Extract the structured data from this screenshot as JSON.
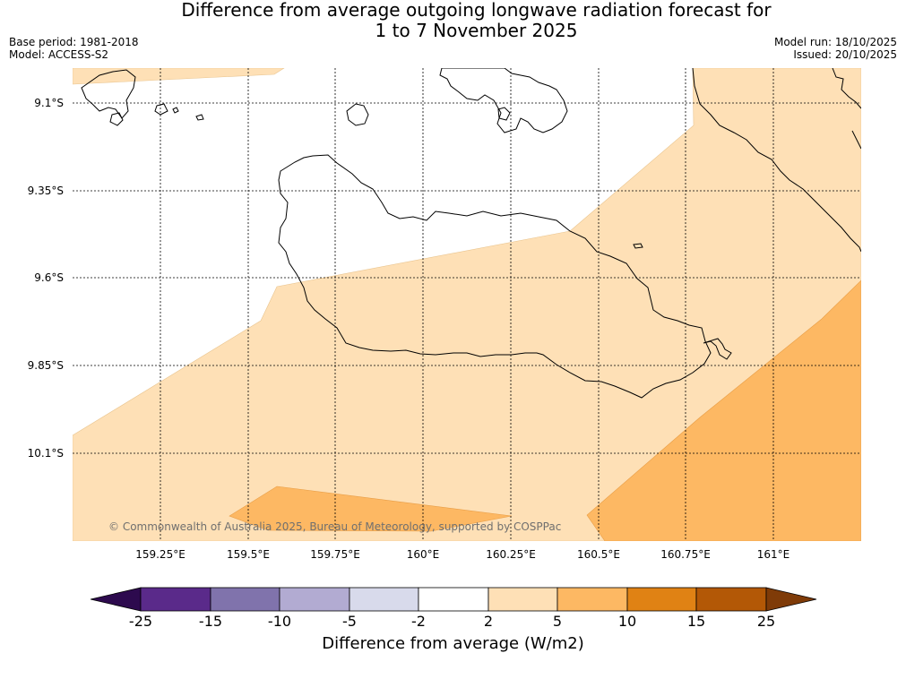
{
  "title": {
    "line1": "Difference from average outgoing longwave radiation forecast for",
    "line2": "1 to 7 November 2025"
  },
  "meta": {
    "base_period": "Base period: 1981-2018",
    "model": "Model: ACCESS-S2",
    "model_run": "Model run: 18/10/2025",
    "issued": "Issued: 20/10/2025"
  },
  "map": {
    "copyright": "© Commonwealth of Australia 2025, Bureau of Meteorology, supported by COSPPac",
    "lat_labels": [
      "9.1°S",
      "9.35°S",
      "9.6°S",
      "9.85°S",
      "10.1°S"
    ],
    "lon_labels": [
      "159.25°E",
      "159.5°E",
      "159.75°E",
      "160°E",
      "160.25°E",
      "160.5°E",
      "160.75°E",
      "161°E"
    ]
  },
  "colorbar": {
    "title": "Difference from average (W/m2)",
    "ticks": [
      "-25",
      "-15",
      "-10",
      "-5",
      "-2",
      "2",
      "5",
      "10",
      "15",
      "25"
    ],
    "colors": {
      "under": "#2d0a4e",
      "bins": [
        "#5a2a8a",
        "#8073ac",
        "#b2abd2",
        "#d8daeb",
        "#ffffff",
        "#fee0b6",
        "#fdb863",
        "#e08214",
        "#b35806"
      ],
      "over": "#7f3b08"
    }
  }
}
